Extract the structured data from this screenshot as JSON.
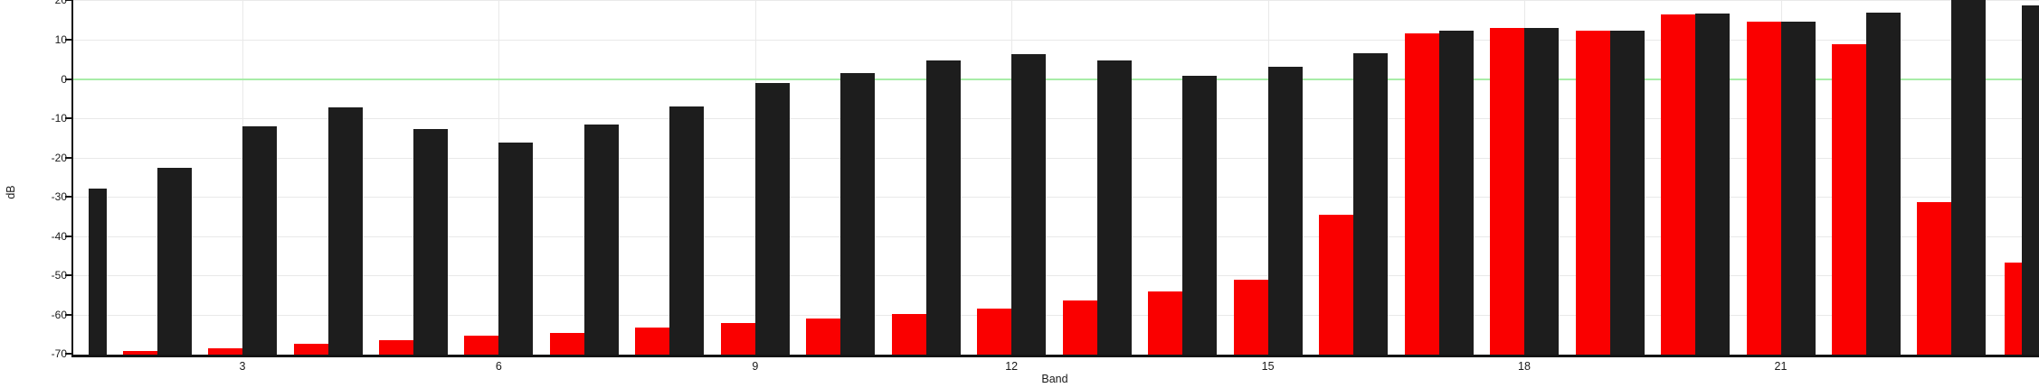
{
  "chart_data": {
    "type": "bar",
    "title": "",
    "xlabel": "Band",
    "ylabel": "dB",
    "categories": [
      1,
      2,
      3,
      4,
      5,
      6,
      7,
      8,
      9,
      10,
      11,
      12,
      13,
      14,
      15,
      16,
      17,
      18,
      19,
      20,
      21,
      22,
      23,
      24
    ],
    "series": [
      {
        "name": "red-bars",
        "color": "#fa0000",
        "values": [
          null,
          -69.3,
          -68.6,
          -67.4,
          -66.5,
          -65.4,
          -64.6,
          -63.2,
          -62.2,
          -60.9,
          -59.9,
          -58.4,
          -56.5,
          -54.2,
          -51.0,
          -34.5,
          11.6,
          12.9,
          12.4,
          16.5,
          14.6,
          8.9,
          -31.4,
          -46.8
        ]
      },
      {
        "name": "black-bars",
        "color": "#1d1d1d",
        "values": [
          -28.0,
          -22.6,
          -12.1,
          -7.2,
          -12.7,
          -16.1,
          -11.6,
          -7.0,
          -1.1,
          1.5,
          4.8,
          6.4,
          4.8,
          0.9,
          3.1,
          6.5,
          12.4,
          13.0,
          12.3,
          16.6,
          14.7,
          16.9,
          21.5,
          18.8
        ]
      }
    ],
    "x_tick_values": [
      3,
      6,
      9,
      12,
      15,
      18,
      21
    ],
    "x_tick_labels": [
      "3",
      "6",
      "9",
      "12",
      "15",
      "18",
      "21"
    ],
    "y_tick_values": [
      20,
      10,
      0,
      -10,
      -20,
      -30,
      -40,
      -50,
      -60,
      -70
    ],
    "y_tick_labels": [
      "20",
      "10",
      "0",
      "-10",
      "-20",
      "-30",
      "-40",
      "-50",
      "-60",
      "-70"
    ],
    "ylim": [
      -70,
      20.7
    ],
    "grid": true,
    "legend": "none",
    "zero_line_value": 0,
    "clipping_notes": {
      "band_1_red": "not visible (below -70 dB scale)",
      "band_23_black": "bar extends above visible top of chart",
      "band_24": "pair cut off by right edge of image"
    },
    "colors": {
      "red_bar": "#fa0000",
      "black_bar": "#1d1d1d",
      "zero_line": "#a8eca8",
      "grid": "#e9e9e9",
      "axis": "#141414",
      "text": "#1a1a1a",
      "background": "#ffffff"
    }
  }
}
